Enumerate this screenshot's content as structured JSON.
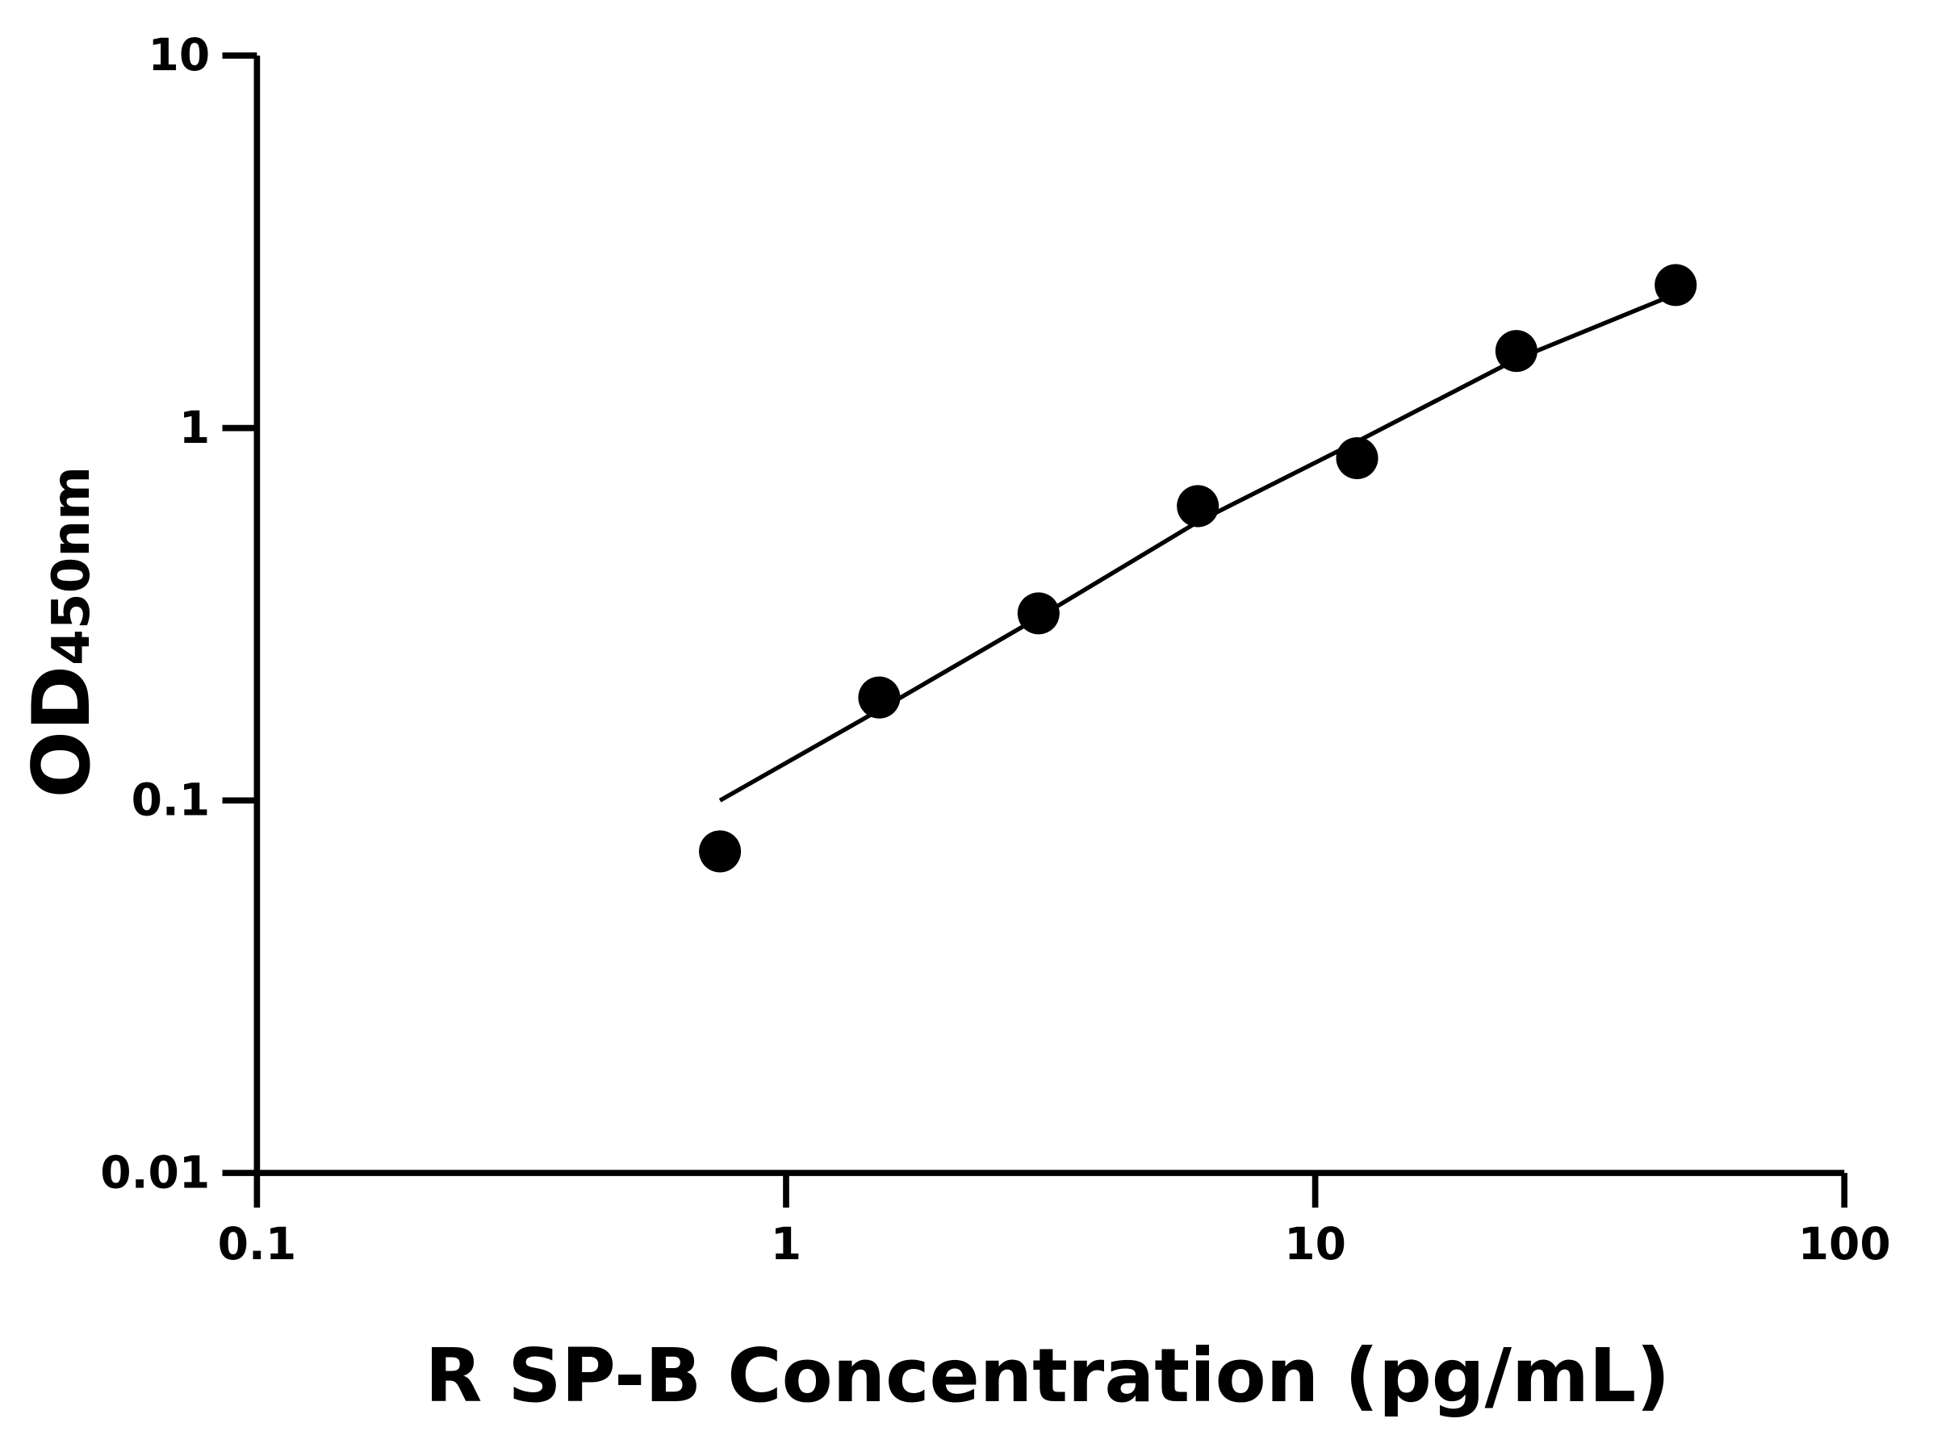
{
  "chart_data": {
    "type": "scatter",
    "x_label": "R SP-B Concentration (pg/mL)",
    "y_label": "OD",
    "y_label_sub": "450nm",
    "xscale": "log",
    "yscale": "log",
    "xlim": [
      0.1,
      100
    ],
    "ylim": [
      0.01,
      10
    ],
    "xticks": [
      0.1,
      1,
      10,
      100
    ],
    "yticks": [
      0.01,
      0.1,
      1,
      10
    ],
    "color": "#000000",
    "x": [
      0.75,
      1.5,
      3,
      6,
      12,
      24,
      48
    ],
    "values": [
      0.073,
      0.189,
      0.318,
      0.617,
      0.83,
      1.61,
      2.42
    ],
    "fit": {
      "color": "#000000",
      "x": [
        0.75,
        1.5,
        3,
        6,
        12,
        24,
        48
      ],
      "values": [
        0.1,
        0.175,
        0.31,
        0.56,
        0.92,
        1.53,
        2.29
      ]
    }
  }
}
